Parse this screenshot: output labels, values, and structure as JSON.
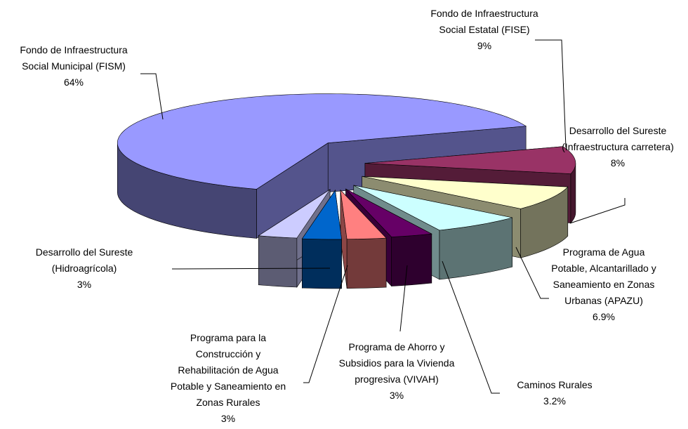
{
  "chart_data": {
    "type": "pie",
    "categories": [
      "Fondo de Infraestructura Social Municipal (FISM)",
      "Fondo de Infraestructura Social Estatal (FISE)",
      "Desarrollo del Sureste (Infraestructura carretera)",
      "Programa de Agua Potable, Alcantarillado y Saneamiento en Zonas Urbanas (APAZU)",
      "Caminos Rurales",
      "Programa de Ahorro y Subsidios para la Vivienda progresiva (VIVAH)",
      "Programa para la Construcción y Rehabilitación de Agua Potable y Saneamiento en Zonas Rurales",
      "Desarrollo del Sureste (Hidroagrícola)"
    ],
    "values": [
      64,
      9,
      8,
      6.9,
      3.2,
      3,
      3,
      3
    ],
    "value_labels": [
      "64%",
      "9%",
      "8%",
      "6.9%",
      "3.2%",
      "3%",
      "3%",
      "3%"
    ],
    "colors": [
      "#9999ff",
      "#993366",
      "#ffffcc",
      "#ccffff",
      "#660066",
      "#ff8080",
      "#0066cc",
      "#ccccff"
    ],
    "three_d": true,
    "exploded": true
  }
}
